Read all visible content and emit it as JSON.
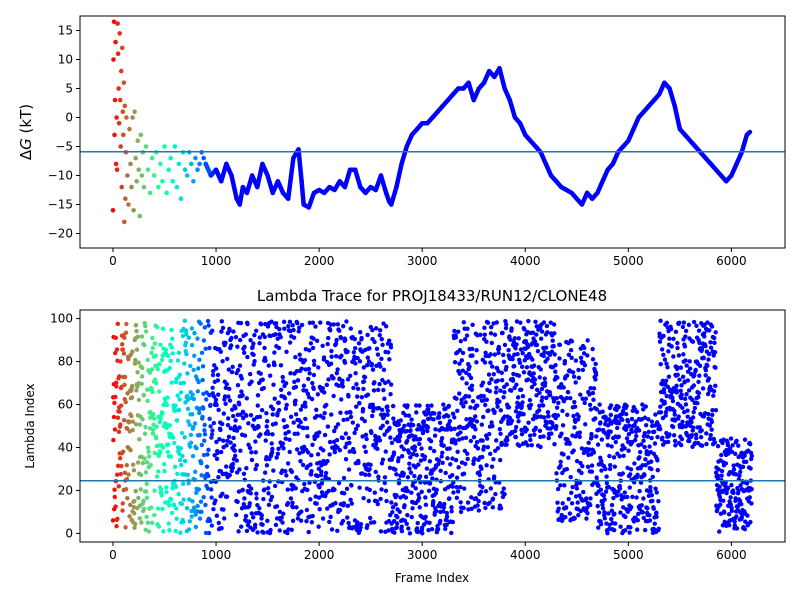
{
  "chart_data": [
    {
      "type": "scatter",
      "title": "",
      "xlabel": "",
      "ylabel": "ΔG (kT)",
      "ylabel_main": "Δ",
      "ylabel_var": "G",
      "ylabel_unit": " (kT)",
      "xlim": [
        -320,
        6520
      ],
      "ylim": [
        -22.5,
        17.5
      ],
      "xticks": [
        0,
        1000,
        2000,
        3000,
        4000,
        5000,
        6000
      ],
      "yticks": [
        -20,
        -15,
        -10,
        -5,
        0,
        5,
        10,
        15
      ],
      "hline": -5.9,
      "hline_color": "#1f77b4",
      "colormap": "rainbow",
      "grid": false,
      "series": [
        {
          "points": [
            [
              0,
              -16
            ],
            [
              5,
              10
            ],
            [
              10,
              16.5
            ],
            [
              15,
              -3
            ],
            [
              20,
              3
            ],
            [
              25,
              13
            ],
            [
              30,
              -8
            ],
            [
              35,
              0
            ],
            [
              40,
              -9
            ],
            [
              45,
              16.2
            ],
            [
              50,
              11
            ],
            [
              55,
              5
            ],
            [
              60,
              -1
            ],
            [
              65,
              14.5
            ],
            [
              70,
              3
            ],
            [
              75,
              -5
            ],
            [
              80,
              8
            ],
            [
              85,
              -12
            ],
            [
              90,
              12
            ],
            [
              95,
              1
            ],
            [
              100,
              -3
            ],
            [
              105,
              6
            ],
            [
              110,
              -18
            ],
            [
              115,
              2
            ],
            [
              120,
              -14
            ],
            [
              125,
              -6
            ],
            [
              130,
              0
            ],
            [
              140,
              -10
            ],
            [
              150,
              -15
            ],
            [
              160,
              -2
            ],
            [
              170,
              -8
            ],
            [
              180,
              -12
            ],
            [
              190,
              0
            ],
            [
              200,
              -16
            ],
            [
              210,
              1
            ],
            [
              220,
              -7
            ],
            [
              230,
              -11
            ],
            [
              240,
              -4
            ],
            [
              250,
              -9
            ],
            [
              260,
              -17
            ],
            [
              270,
              -3
            ],
            [
              280,
              -10
            ],
            [
              290,
              -6
            ],
            [
              300,
              -12
            ],
            [
              320,
              -5
            ],
            [
              340,
              -9
            ],
            [
              360,
              -13
            ],
            [
              380,
              -7
            ],
            [
              400,
              -10
            ],
            [
              420,
              -6
            ],
            [
              440,
              -12
            ],
            [
              460,
              -8
            ],
            [
              480,
              -11
            ],
            [
              500,
              -5
            ],
            [
              520,
              -13
            ],
            [
              540,
              -9
            ],
            [
              560,
              -7
            ],
            [
              580,
              -11
            ],
            [
              600,
              -5
            ],
            [
              620,
              -12
            ],
            [
              640,
              -8
            ],
            [
              660,
              -14
            ],
            [
              680,
              -6
            ],
            [
              700,
              -9
            ],
            [
              720,
              -10
            ],
            [
              740,
              -6
            ],
            [
              760,
              -8
            ],
            [
              780,
              -11
            ],
            [
              800,
              -7
            ],
            [
              820,
              -9
            ],
            [
              840,
              -8
            ],
            [
              860,
              -6
            ],
            [
              880,
              -7
            ],
            [
              900,
              -8
            ]
          ]
        },
        {
          "path": [
            [
              900,
              -8
            ],
            [
              950,
              -10
            ],
            [
              1000,
              -9
            ],
            [
              1050,
              -11
            ],
            [
              1100,
              -8
            ],
            [
              1150,
              -10
            ],
            [
              1200,
              -14
            ],
            [
              1230,
              -15
            ],
            [
              1260,
              -12
            ],
            [
              1300,
              -13
            ],
            [
              1350,
              -10
            ],
            [
              1400,
              -12
            ],
            [
              1450,
              -8
            ],
            [
              1500,
              -10
            ],
            [
              1550,
              -13
            ],
            [
              1600,
              -11
            ],
            [
              1650,
              -13
            ],
            [
              1700,
              -14
            ],
            [
              1750,
              -7
            ],
            [
              1800,
              -5.5
            ],
            [
              1830,
              -11
            ],
            [
              1850,
              -15
            ],
            [
              1900,
              -15.5
            ],
            [
              1950,
              -13
            ],
            [
              2000,
              -12.5
            ],
            [
              2050,
              -13
            ],
            [
              2100,
              -12
            ],
            [
              2150,
              -12.5
            ],
            [
              2200,
              -11
            ],
            [
              2250,
              -12
            ],
            [
              2300,
              -9
            ],
            [
              2350,
              -9
            ],
            [
              2400,
              -12
            ],
            [
              2450,
              -13
            ],
            [
              2500,
              -12
            ],
            [
              2550,
              -12.5
            ],
            [
              2600,
              -10
            ],
            [
              2650,
              -13
            ],
            [
              2680,
              -14.5
            ],
            [
              2700,
              -15
            ],
            [
              2750,
              -12
            ],
            [
              2800,
              -8
            ],
            [
              2850,
              -5
            ],
            [
              2900,
              -3
            ],
            [
              2950,
              -2
            ],
            [
              3000,
              -1
            ],
            [
              3050,
              -1
            ],
            [
              3100,
              0
            ],
            [
              3150,
              1
            ],
            [
              3200,
              2
            ],
            [
              3250,
              3
            ],
            [
              3300,
              4
            ],
            [
              3350,
              5
            ],
            [
              3400,
              5
            ],
            [
              3450,
              6
            ],
            [
              3500,
              3
            ],
            [
              3550,
              5
            ],
            [
              3600,
              6
            ],
            [
              3650,
              8
            ],
            [
              3700,
              7
            ],
            [
              3750,
              8.5
            ],
            [
              3800,
              5
            ],
            [
              3850,
              3
            ],
            [
              3900,
              0
            ],
            [
              3950,
              -1
            ],
            [
              4000,
              -3
            ],
            [
              4050,
              -4
            ],
            [
              4100,
              -5
            ],
            [
              4150,
              -6
            ],
            [
              4200,
              -8
            ],
            [
              4250,
              -10
            ],
            [
              4300,
              -11
            ],
            [
              4350,
              -12
            ],
            [
              4400,
              -12.5
            ],
            [
              4450,
              -13
            ],
            [
              4500,
              -14
            ],
            [
              4550,
              -15
            ],
            [
              4600,
              -13
            ],
            [
              4650,
              -14
            ],
            [
              4700,
              -13
            ],
            [
              4750,
              -11
            ],
            [
              4800,
              -9
            ],
            [
              4850,
              -8
            ],
            [
              4900,
              -6
            ],
            [
              4950,
              -5
            ],
            [
              5000,
              -4
            ],
            [
              5050,
              -2
            ],
            [
              5100,
              0
            ],
            [
              5150,
              1
            ],
            [
              5200,
              2
            ],
            [
              5250,
              3
            ],
            [
              5300,
              4
            ],
            [
              5350,
              6
            ],
            [
              5400,
              5
            ],
            [
              5450,
              2
            ],
            [
              5500,
              -2
            ],
            [
              5550,
              -3
            ],
            [
              5600,
              -4
            ],
            [
              5650,
              -5
            ],
            [
              5700,
              -6
            ],
            [
              5750,
              -7
            ],
            [
              5800,
              -8
            ],
            [
              5850,
              -9
            ],
            [
              5900,
              -10
            ],
            [
              5950,
              -11
            ],
            [
              6000,
              -10
            ],
            [
              6050,
              -8
            ],
            [
              6100,
              -6
            ],
            [
              6150,
              -3
            ],
            [
              6180,
              -2.5
            ]
          ]
        }
      ]
    },
    {
      "type": "scatter",
      "title": "Lambda Trace for PROJ18433/RUN12/CLONE48",
      "xlabel": "Frame Index",
      "ylabel": "Lambda Index",
      "xlim": [
        -320,
        6520
      ],
      "ylim": [
        -4,
        104
      ],
      "xticks": [
        0,
        1000,
        2000,
        3000,
        4000,
        5000,
        6000
      ],
      "yticks": [
        0,
        20,
        40,
        60,
        80,
        100
      ],
      "hline": 24.5,
      "hline_color": "#1f77b4",
      "colormap": "rainbow",
      "grid": false,
      "density": {
        "segments": [
          {
            "from": 0,
            "to": 2700,
            "low": 0,
            "high": 99
          },
          {
            "from": 2700,
            "to": 3300,
            "low": 0,
            "high": 60
          },
          {
            "from": 3300,
            "to": 3800,
            "low": 10,
            "high": 99
          },
          {
            "from": 3800,
            "to": 4300,
            "low": 40,
            "high": 99
          },
          {
            "from": 4300,
            "to": 4700,
            "low": 5,
            "high": 90
          },
          {
            "from": 4700,
            "to": 5300,
            "low": 0,
            "high": 60
          },
          {
            "from": 5300,
            "to": 5850,
            "low": 40,
            "high": 99
          },
          {
            "from": 5850,
            "to": 6200,
            "low": 0,
            "high": 45
          }
        ],
        "count": 3200
      }
    }
  ]
}
